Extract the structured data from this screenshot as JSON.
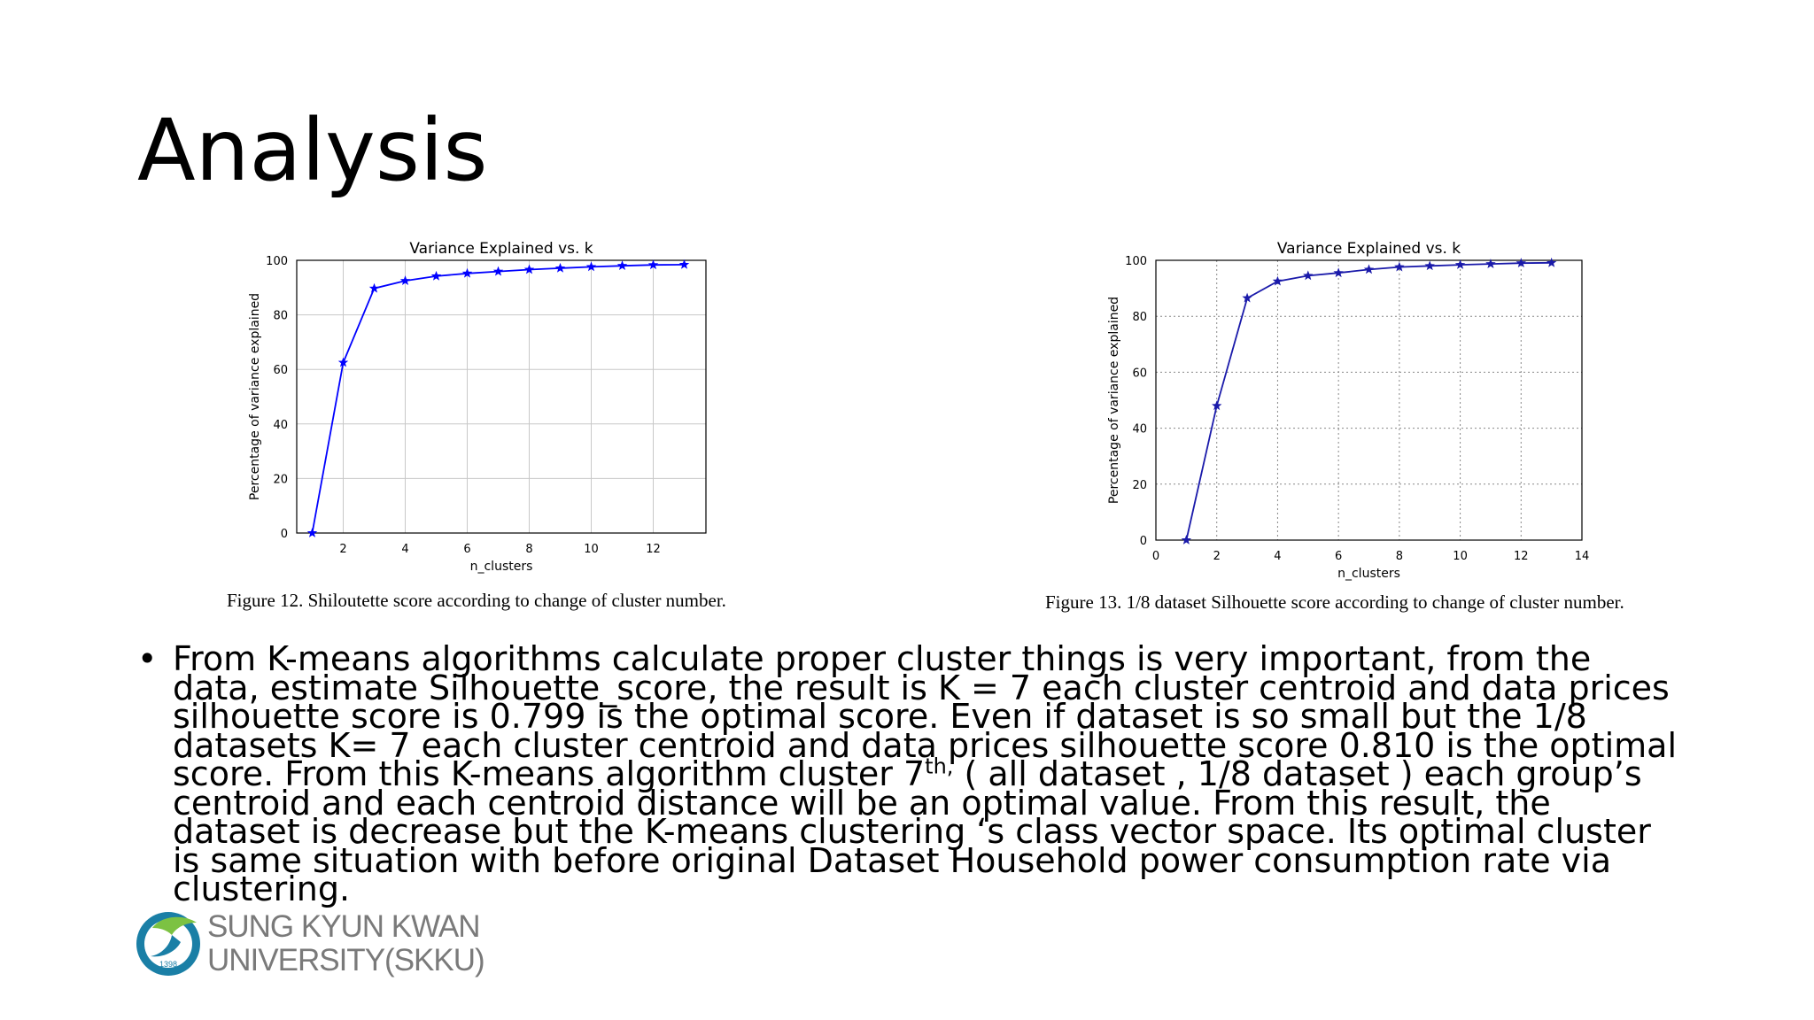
{
  "slide": {
    "title": "Analysis",
    "caption1": "Figure 12. Shiloutette score according to change of cluster number.",
    "caption2": "Figure 13. 1/8 dataset Silhouette score according to change of cluster number.",
    "bullet_text": "From K-means algorithms calculate proper cluster things is very important, from the data, estimate Silhouette_score, the result is K = 7 each cluster centroid and data prices silhouette score is 0.799 is the optimal score. Even if dataset is so small but the 1/8 datasets K= 7 each cluster centroid and data prices silhouette score 0.810 is the optimal score. From this K-means algorithm cluster 7",
    "bullet_sup": "th,",
    "bullet_text_tail": " ( all dataset , 1/8 dataset ) each group’s centroid and each centroid distance will be an optimal value. From this result, the dataset is decrease but the K-means clustering ‘s class vector space. Its optimal cluster is same situation with before original Dataset Household power consumption rate via clustering.",
    "logo": {
      "line1": "SUNG KYUN KWAN",
      "line2": "UNIVERSITY(SKKU)",
      "year": "1398",
      "colors": {
        "teal": "#1a7fa6",
        "green": "#7cc242"
      }
    }
  },
  "chart_data": [
    {
      "type": "line",
      "title": "Variance Explained vs. k",
      "xlabel": "n_clusters",
      "ylabel": "Percentage of variance explained",
      "xlim": [
        0.5,
        13.7
      ],
      "ylim": [
        0,
        100
      ],
      "xticks": [
        2,
        4,
        6,
        8,
        10,
        12
      ],
      "yticks": [
        0,
        20,
        40,
        60,
        80,
        100
      ],
      "grid": "solid",
      "color": "#0000ff",
      "x": [
        1,
        2,
        3,
        4,
        5,
        6,
        7,
        8,
        9,
        10,
        11,
        12,
        13
      ],
      "y": [
        0,
        62.5,
        89.7,
        92.5,
        94.2,
        95.2,
        95.9,
        96.6,
        97.1,
        97.6,
        98.0,
        98.3,
        98.4
      ]
    },
    {
      "type": "line",
      "title": "Variance Explained vs. k",
      "xlabel": "n_clusters",
      "ylabel": "Percentage of variance explained",
      "xlim": [
        0,
        14
      ],
      "ylim": [
        0,
        100
      ],
      "xticks": [
        0,
        2,
        4,
        6,
        8,
        10,
        12,
        14
      ],
      "yticks": [
        0,
        20,
        40,
        60,
        80,
        100
      ],
      "grid": "dotted",
      "color": "#1a1aaa",
      "x": [
        1,
        2,
        3,
        4,
        5,
        6,
        7,
        8,
        9,
        10,
        11,
        12,
        13
      ],
      "y": [
        0,
        48,
        86.5,
        92.5,
        94.5,
        95.5,
        96.7,
        97.6,
        98.0,
        98.4,
        98.7,
        99.0,
        99.1
      ]
    }
  ]
}
